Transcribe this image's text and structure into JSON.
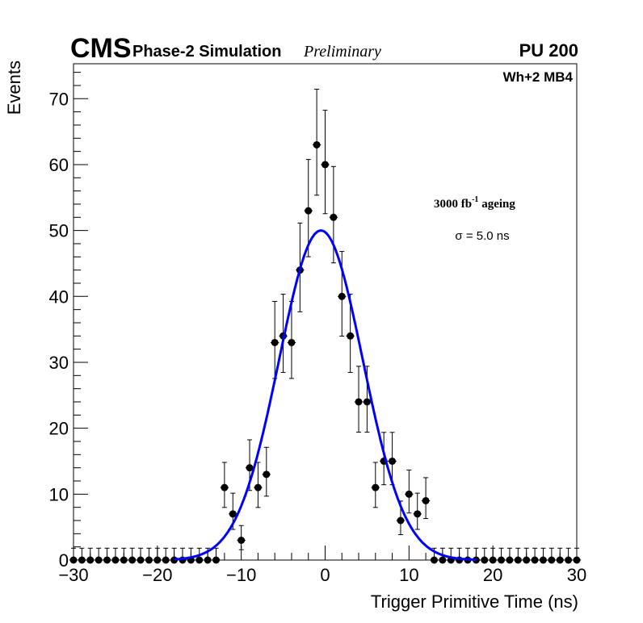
{
  "header": {
    "cms": "CMS",
    "subtitle": "Phase-2 Simulation",
    "preliminary": "Preliminary",
    "pu": "PU 200",
    "chamber": "Wh+2 MB4"
  },
  "annotations": {
    "ageing_prefix": "3000 fb",
    "ageing_exp": "-1",
    "ageing_suffix": " ageing",
    "sigma": "σ = 5.0 ns"
  },
  "chart_data": {
    "type": "scatter",
    "title": "",
    "xlabel": "Trigger Primitive Time (ns)",
    "ylabel": "Events",
    "xlim": [
      -30,
      30
    ],
    "ylim": [
      0,
      75.3
    ],
    "xticks": [
      -30,
      -20,
      -10,
      0,
      10,
      20,
      30
    ],
    "xtick_labels": [
      "−30",
      "−20",
      "−10",
      "0",
      "10",
      "20",
      "30"
    ],
    "yticks": [
      0,
      10,
      20,
      30,
      40,
      50,
      60,
      70
    ],
    "ytick_labels": [
      "0",
      "10",
      "20",
      "30",
      "40",
      "50",
      "60",
      "70"
    ],
    "x": [
      -30,
      -29,
      -28,
      -27,
      -26,
      -25,
      -24,
      -23,
      -22,
      -21,
      -20,
      -19,
      -18,
      -17,
      -16,
      -15,
      -14,
      -13,
      -12,
      -11,
      -10,
      -9,
      -8,
      -7,
      -6,
      -5,
      -4,
      -3,
      -2,
      -1,
      0,
      1,
      2,
      3,
      4,
      5,
      6,
      7,
      8,
      9,
      10,
      11,
      12,
      13,
      14,
      15,
      16,
      17,
      18,
      19,
      20,
      21,
      22,
      23,
      24,
      25,
      26,
      27,
      28,
      29,
      30
    ],
    "values": [
      0,
      0,
      0,
      0,
      0,
      0,
      0,
      0,
      0,
      0,
      0,
      0,
      0,
      0,
      0,
      0,
      0,
      0,
      11,
      7,
      3,
      14,
      11,
      13,
      33,
      34,
      33,
      44,
      53,
      63,
      60,
      52,
      40,
      34,
      24,
      24,
      11,
      15,
      15,
      6,
      10,
      7,
      9,
      0,
      0,
      0,
      0,
      0,
      0,
      0,
      0,
      0,
      0,
      0,
      0,
      0,
      0,
      0,
      0,
      0,
      0
    ],
    "fit": {
      "type": "gaussian",
      "amplitude": 50,
      "mean": -0.5,
      "sigma": 5.0,
      "color": "#0000ff"
    },
    "marker_color": "#000000",
    "grid": false
  }
}
